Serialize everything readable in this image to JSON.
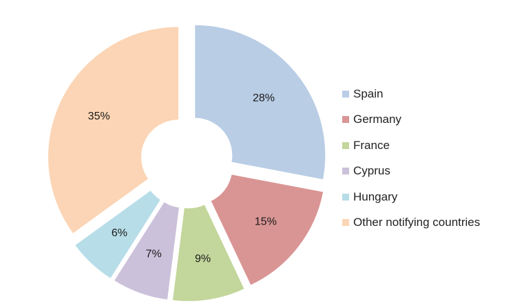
{
  "chart_data": {
    "type": "pie",
    "style": "exploded-donut",
    "legend_position": "right",
    "categories": [
      "Spain",
      "Germany",
      "France",
      "Cyprus",
      "Hungary",
      "Other notifying countries"
    ],
    "values": [
      28,
      15,
      9,
      7,
      6,
      35
    ],
    "labels": [
      "28%",
      "15%",
      "9%",
      "7%",
      "6%",
      "35%"
    ],
    "colors": [
      "#b9cde5",
      "#d99594",
      "#c3d69b",
      "#ccc1da",
      "#b7dde8",
      "#fbd5b5"
    ]
  }
}
